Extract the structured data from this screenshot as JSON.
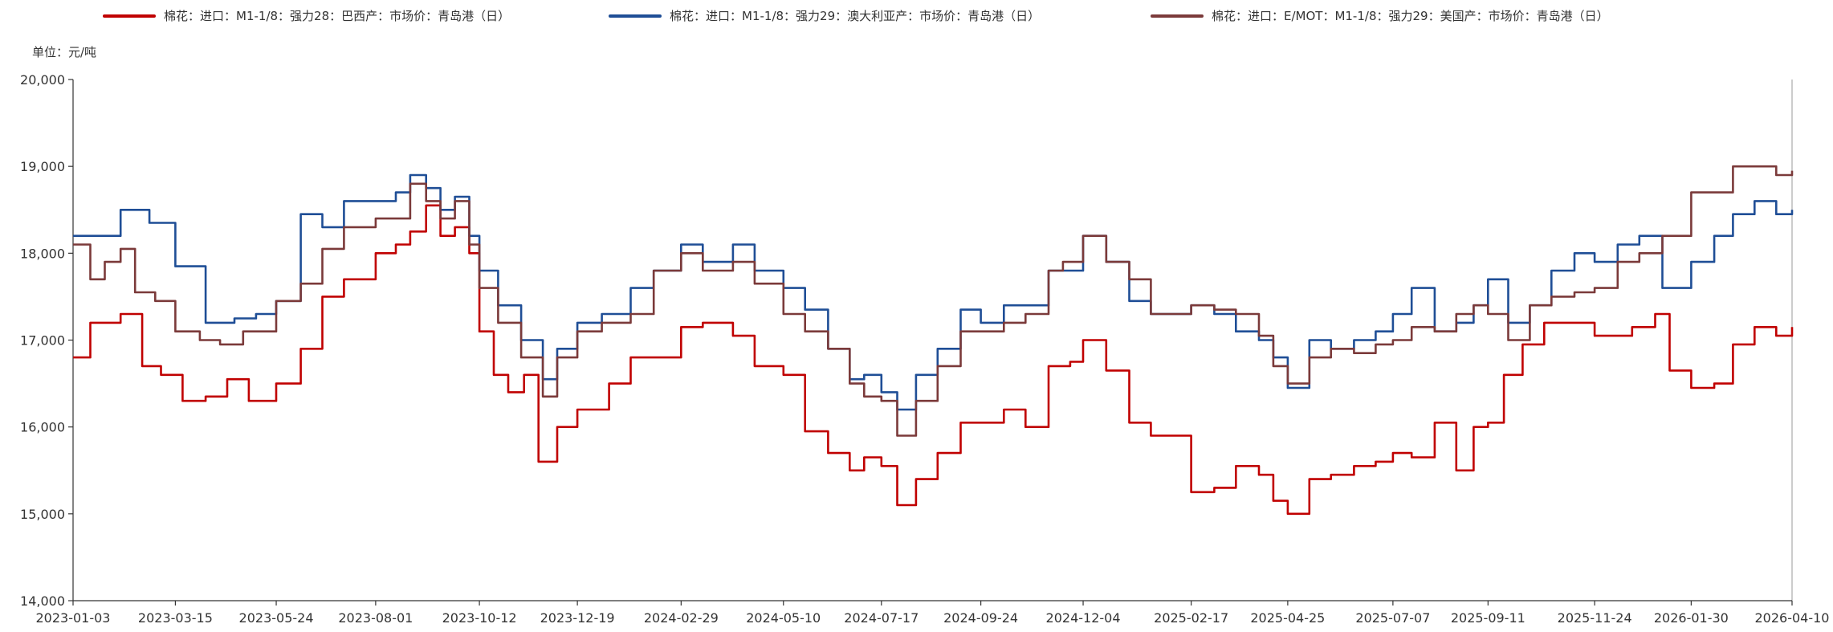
{
  "unit_label": "单位：元/吨",
  "colors": {
    "axis": "#333333",
    "tick_text": "#333333",
    "background": "#ffffff"
  },
  "chart_data": {
    "type": "line",
    "title": "",
    "xlabel": "",
    "ylabel": "单位：元/吨",
    "ylim": [
      14000,
      20000
    ],
    "y_ticks": [
      14000,
      15000,
      16000,
      17000,
      18000,
      19000,
      20000
    ],
    "y_tick_labels": [
      "14,000",
      "15,000",
      "16,000",
      "17,000",
      "18,000",
      "19,000",
      "20,000"
    ],
    "x_range": [
      "2023-01-03",
      "2026-04-10"
    ],
    "x_ticks": [
      "2023-01-03",
      "2023-03-15",
      "2023-05-24",
      "2023-08-01",
      "2023-10-12",
      "2023-12-19",
      "2024-02-29",
      "2024-05-10",
      "2024-07-17",
      "2024-09-24",
      "2024-12-04",
      "2025-02-17",
      "2025-04-25",
      "2025-07-07",
      "2025-09-11",
      "2025-11-24",
      "2026-01-30",
      "2026-04-10"
    ],
    "grid": false,
    "legend_position": "top",
    "series": [
      {
        "name": "棉花：进口：M1-1/8：强力28：巴西产：市场价：青岛港（日）",
        "color": "#c00000",
        "x": [
          "2023-01-03",
          "2023-01-15",
          "2023-02-05",
          "2023-02-20",
          "2023-03-05",
          "2023-03-20",
          "2023-04-05",
          "2023-04-20",
          "2023-05-05",
          "2023-05-24",
          "2023-06-10",
          "2023-06-25",
          "2023-07-10",
          "2023-08-01",
          "2023-08-15",
          "2023-08-25",
          "2023-09-05",
          "2023-09-15",
          "2023-09-25",
          "2023-10-05",
          "2023-10-12",
          "2023-10-22",
          "2023-11-01",
          "2023-11-12",
          "2023-11-22",
          "2023-12-05",
          "2023-12-19",
          "2024-01-10",
          "2024-01-25",
          "2024-02-10",
          "2024-02-29",
          "2024-03-15",
          "2024-04-05",
          "2024-04-20",
          "2024-05-10",
          "2024-05-25",
          "2024-06-10",
          "2024-06-25",
          "2024-07-05",
          "2024-07-17",
          "2024-07-28",
          "2024-08-10",
          "2024-08-25",
          "2024-09-10",
          "2024-09-24",
          "2024-10-10",
          "2024-10-25",
          "2024-11-10",
          "2024-11-25",
          "2024-12-04",
          "2024-12-20",
          "2025-01-05",
          "2025-01-20",
          "2025-02-17",
          "2025-03-05",
          "2025-03-20",
          "2025-04-05",
          "2025-04-15",
          "2025-04-25",
          "2025-05-10",
          "2025-05-25",
          "2025-06-10",
          "2025-06-25",
          "2025-07-07",
          "2025-07-20",
          "2025-08-05",
          "2025-08-20",
          "2025-09-01",
          "2025-09-11",
          "2025-09-22",
          "2025-10-05",
          "2025-10-20",
          "2025-11-05",
          "2025-11-24",
          "2025-12-05",
          "2025-12-20",
          "2026-01-05",
          "2026-01-15",
          "2026-01-30",
          "2026-02-15",
          "2026-02-28",
          "2026-03-15",
          "2026-03-30",
          "2026-04-10"
        ],
        "values": [
          16800,
          17200,
          17300,
          16700,
          16600,
          16300,
          16350,
          16550,
          16300,
          16500,
          16900,
          17500,
          17700,
          18000,
          18100,
          18250,
          18550,
          18200,
          18300,
          18000,
          17100,
          16600,
          16400,
          16600,
          15600,
          16000,
          16200,
          16500,
          16800,
          16800,
          17150,
          17200,
          17050,
          16700,
          16600,
          15950,
          15700,
          15500,
          15650,
          15550,
          15100,
          15400,
          15700,
          16050,
          16050,
          16200,
          16000,
          16700,
          16750,
          17000,
          16650,
          16050,
          15900,
          15250,
          15300,
          15550,
          15450,
          15150,
          15000,
          15400,
          15450,
          15550,
          15600,
          15700,
          15650,
          16050,
          15500,
          16000,
          16050,
          16600,
          16950,
          17200,
          17200,
          17050,
          17050,
          17150,
          17300,
          16650,
          16450,
          16500,
          16950,
          17150,
          17050,
          17150
        ]
      },
      {
        "name": "棉花：进口：M1-1/8：强力29：澳大利亚产：市场价：青岛港（日）",
        "color": "#1f4e96",
        "x": [
          "2023-01-03",
          "2023-01-20",
          "2023-02-05",
          "2023-02-25",
          "2023-03-15",
          "2023-04-05",
          "2023-04-25",
          "2023-05-10",
          "2023-05-24",
          "2023-06-10",
          "2023-06-25",
          "2023-07-10",
          "2023-08-01",
          "2023-08-15",
          "2023-08-25",
          "2023-09-05",
          "2023-09-15",
          "2023-09-25",
          "2023-10-05",
          "2023-10-12",
          "2023-10-25",
          "2023-11-10",
          "2023-11-25",
          "2023-12-05",
          "2023-12-19",
          "2024-01-05",
          "2024-01-25",
          "2024-02-10",
          "2024-02-29",
          "2024-03-15",
          "2024-04-05",
          "2024-04-20",
          "2024-05-10",
          "2024-05-25",
          "2024-06-10",
          "2024-06-25",
          "2024-07-05",
          "2024-07-17",
          "2024-07-28",
          "2024-08-10",
          "2024-08-25",
          "2024-09-10",
          "2024-09-24",
          "2024-10-10",
          "2024-10-25",
          "2024-11-10",
          "2024-11-25",
          "2024-12-04",
          "2024-12-20",
          "2025-01-05",
          "2025-01-20",
          "2025-02-17",
          "2025-03-05",
          "2025-03-20",
          "2025-04-05",
          "2025-04-15",
          "2025-04-25",
          "2025-05-10",
          "2025-05-25",
          "2025-06-10",
          "2025-06-25",
          "2025-07-07",
          "2025-07-20",
          "2025-08-05",
          "2025-08-20",
          "2025-09-01",
          "2025-09-11",
          "2025-09-25",
          "2025-10-10",
          "2025-10-25",
          "2025-11-10",
          "2025-11-24",
          "2025-12-10",
          "2025-12-25",
          "2026-01-10",
          "2026-01-30",
          "2026-02-15",
          "2026-02-28",
          "2026-03-15",
          "2026-03-30",
          "2026-04-10"
        ],
        "values": [
          18200,
          18200,
          18500,
          18350,
          17850,
          17200,
          17250,
          17300,
          17450,
          18450,
          18300,
          18600,
          18600,
          18700,
          18900,
          18750,
          18500,
          18650,
          18200,
          17800,
          17400,
          17000,
          16550,
          16900,
          17200,
          17300,
          17600,
          17800,
          18100,
          17900,
          18100,
          17800,
          17600,
          17350,
          16900,
          16550,
          16600,
          16400,
          16200,
          16600,
          16900,
          17350,
          17200,
          17400,
          17400,
          17800,
          17800,
          18200,
          17900,
          17450,
          17300,
          17400,
          17300,
          17100,
          17000,
          16800,
          16450,
          17000,
          16900,
          17000,
          17100,
          17300,
          17600,
          17100,
          17200,
          17400,
          17700,
          17200,
          17400,
          17800,
          18000,
          17900,
          18100,
          18200,
          17600,
          17900,
          18200,
          18450,
          18600,
          18450,
          18500
        ]
      },
      {
        "name": "棉花：进口：E/MOT：M1-1/8：强力29：美国产：市场价：青岛港（日）",
        "color": "#7b3a3a",
        "x": [
          "2023-01-03",
          "2023-01-15",
          "2023-01-25",
          "2023-02-05",
          "2023-02-15",
          "2023-03-01",
          "2023-03-15",
          "2023-04-01",
          "2023-04-15",
          "2023-05-01",
          "2023-05-24",
          "2023-06-10",
          "2023-06-25",
          "2023-07-10",
          "2023-08-01",
          "2023-08-15",
          "2023-08-25",
          "2023-09-05",
          "2023-09-15",
          "2023-09-25",
          "2023-10-05",
          "2023-10-12",
          "2023-10-25",
          "2023-11-10",
          "2023-11-25",
          "2023-12-05",
          "2023-12-19",
          "2024-01-05",
          "2024-01-25",
          "2024-02-10",
          "2024-02-29",
          "2024-03-15",
          "2024-04-05",
          "2024-04-20",
          "2024-05-10",
          "2024-05-25",
          "2024-06-10",
          "2024-06-25",
          "2024-07-05",
          "2024-07-17",
          "2024-07-28",
          "2024-08-10",
          "2024-08-25",
          "2024-09-10",
          "2024-09-24",
          "2024-10-10",
          "2024-10-25",
          "2024-11-10",
          "2024-11-20",
          "2024-12-04",
          "2024-12-20",
          "2025-01-05",
          "2025-01-20",
          "2025-02-17",
          "2025-03-05",
          "2025-03-20",
          "2025-04-05",
          "2025-04-15",
          "2025-04-25",
          "2025-05-10",
          "2025-05-25",
          "2025-06-10",
          "2025-06-25",
          "2025-07-07",
          "2025-07-20",
          "2025-08-05",
          "2025-08-20",
          "2025-09-01",
          "2025-09-11",
          "2025-09-25",
          "2025-10-10",
          "2025-10-25",
          "2025-11-10",
          "2025-11-24",
          "2025-12-10",
          "2025-12-25",
          "2026-01-10",
          "2026-01-30",
          "2026-02-15",
          "2026-02-28",
          "2026-03-15",
          "2026-03-30",
          "2026-04-10"
        ],
        "values": [
          18100,
          17700,
          17900,
          18050,
          17550,
          17450,
          17100,
          17000,
          16950,
          17100,
          17450,
          17650,
          18050,
          18300,
          18400,
          18400,
          18800,
          18600,
          18400,
          18600,
          18100,
          17600,
          17200,
          16800,
          16350,
          16800,
          17100,
          17200,
          17300,
          17800,
          18000,
          17800,
          17900,
          17650,
          17300,
          17100,
          16900,
          16500,
          16350,
          16300,
          15900,
          16300,
          16700,
          17100,
          17100,
          17200,
          17300,
          17800,
          17900,
          18200,
          17900,
          17700,
          17300,
          17400,
          17350,
          17300,
          17050,
          16700,
          16500,
          16800,
          16900,
          16850,
          16950,
          17000,
          17150,
          17100,
          17300,
          17400,
          17300,
          17000,
          17400,
          17500,
          17550,
          17600,
          17900,
          18000,
          18200,
          18700,
          18700,
          19000,
          19000,
          18900,
          18950
        ]
      }
    ]
  }
}
